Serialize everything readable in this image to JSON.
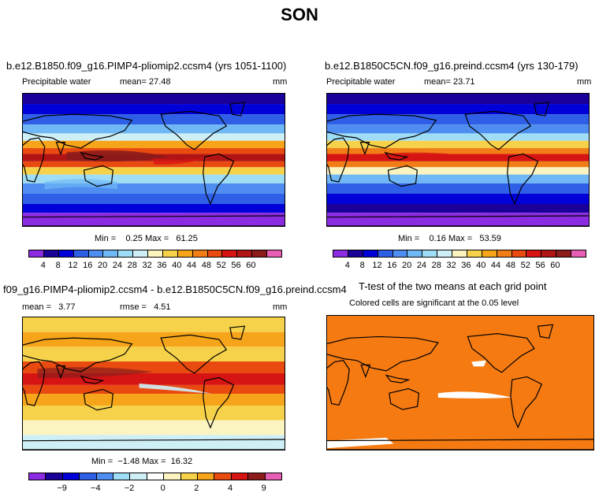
{
  "season": "SON",
  "colors": {
    "abs_scale": [
      "#8b2be2",
      "#1a0099",
      "#0000d8",
      "#2f5fe6",
      "#4f8ef0",
      "#6fb8f5",
      "#9fdcf5",
      "#cfeff6",
      "#fbf3c0",
      "#f6d24a",
      "#f6a51a",
      "#f07d16",
      "#e84a10",
      "#d61414",
      "#b01414",
      "#8c1b1b",
      "#e65fb4"
    ],
    "diff_scale": [
      "#8b2be2",
      "#1a0099",
      "#0000d8",
      "#2f5fe6",
      "#4f8ef0",
      "#9fdcf5",
      "#cfeff6",
      "#ffffff",
      "#fbf3c0",
      "#f6d24a",
      "#f6a51a",
      "#e84a10",
      "#d61414",
      "#8c1b1b",
      "#e65fb4"
    ],
    "significant": "#f57a12"
  },
  "panels": {
    "p1": {
      "title": "b.e12.B1850.f09_g16.PIMP4-pliomip2.ccsm4 (yrs 1051-1100)",
      "variable": "Precipitable water",
      "mean_label": "mean=",
      "mean_value": "27.48",
      "units": "mm",
      "min_label": "Min =",
      "min_value": "0.25",
      "max_label": "Max =",
      "max_value": "61.25",
      "ticks": [
        "4",
        "8",
        "12",
        "16",
        "20",
        "24",
        "28",
        "32",
        "36",
        "40",
        "44",
        "48",
        "52",
        "56",
        "60"
      ]
    },
    "p2": {
      "title": "b.e12.B1850C5CN.f09_g16.preind.ccsm4 (yrs 130-179)",
      "variable": "Precipitable water",
      "mean_label": "mean=",
      "mean_value": "23.71",
      "units": "mm",
      "min_label": "Min =",
      "min_value": "0.16",
      "max_label": "Max =",
      "max_value": "53.59",
      "ticks": [
        "4",
        "8",
        "12",
        "16",
        "20",
        "24",
        "28",
        "32",
        "36",
        "40",
        "44",
        "48",
        "52",
        "56",
        "60"
      ]
    },
    "p3": {
      "title": "f09_g16.PIMP4-pliomip2.ccsm4 - b.e12.B1850C5CN.f09_g16.preind.ccsm4",
      "mean_label": "mean =",
      "mean_value": "3.77",
      "rmse_label": "rmse =",
      "rmse_value": "4.51",
      "units": "mm",
      "min_label": "Min =",
      "min_value": "−1.48",
      "max_label": "Max =",
      "max_value": "16.32",
      "ticks": [
        "−9",
        "−4",
        "−2",
        "0",
        "2",
        "4",
        "9"
      ]
    },
    "p4": {
      "title": "T-test of the two means at each grid point",
      "subtitle": "Colored cells are significant at the 0.05 level"
    }
  }
}
